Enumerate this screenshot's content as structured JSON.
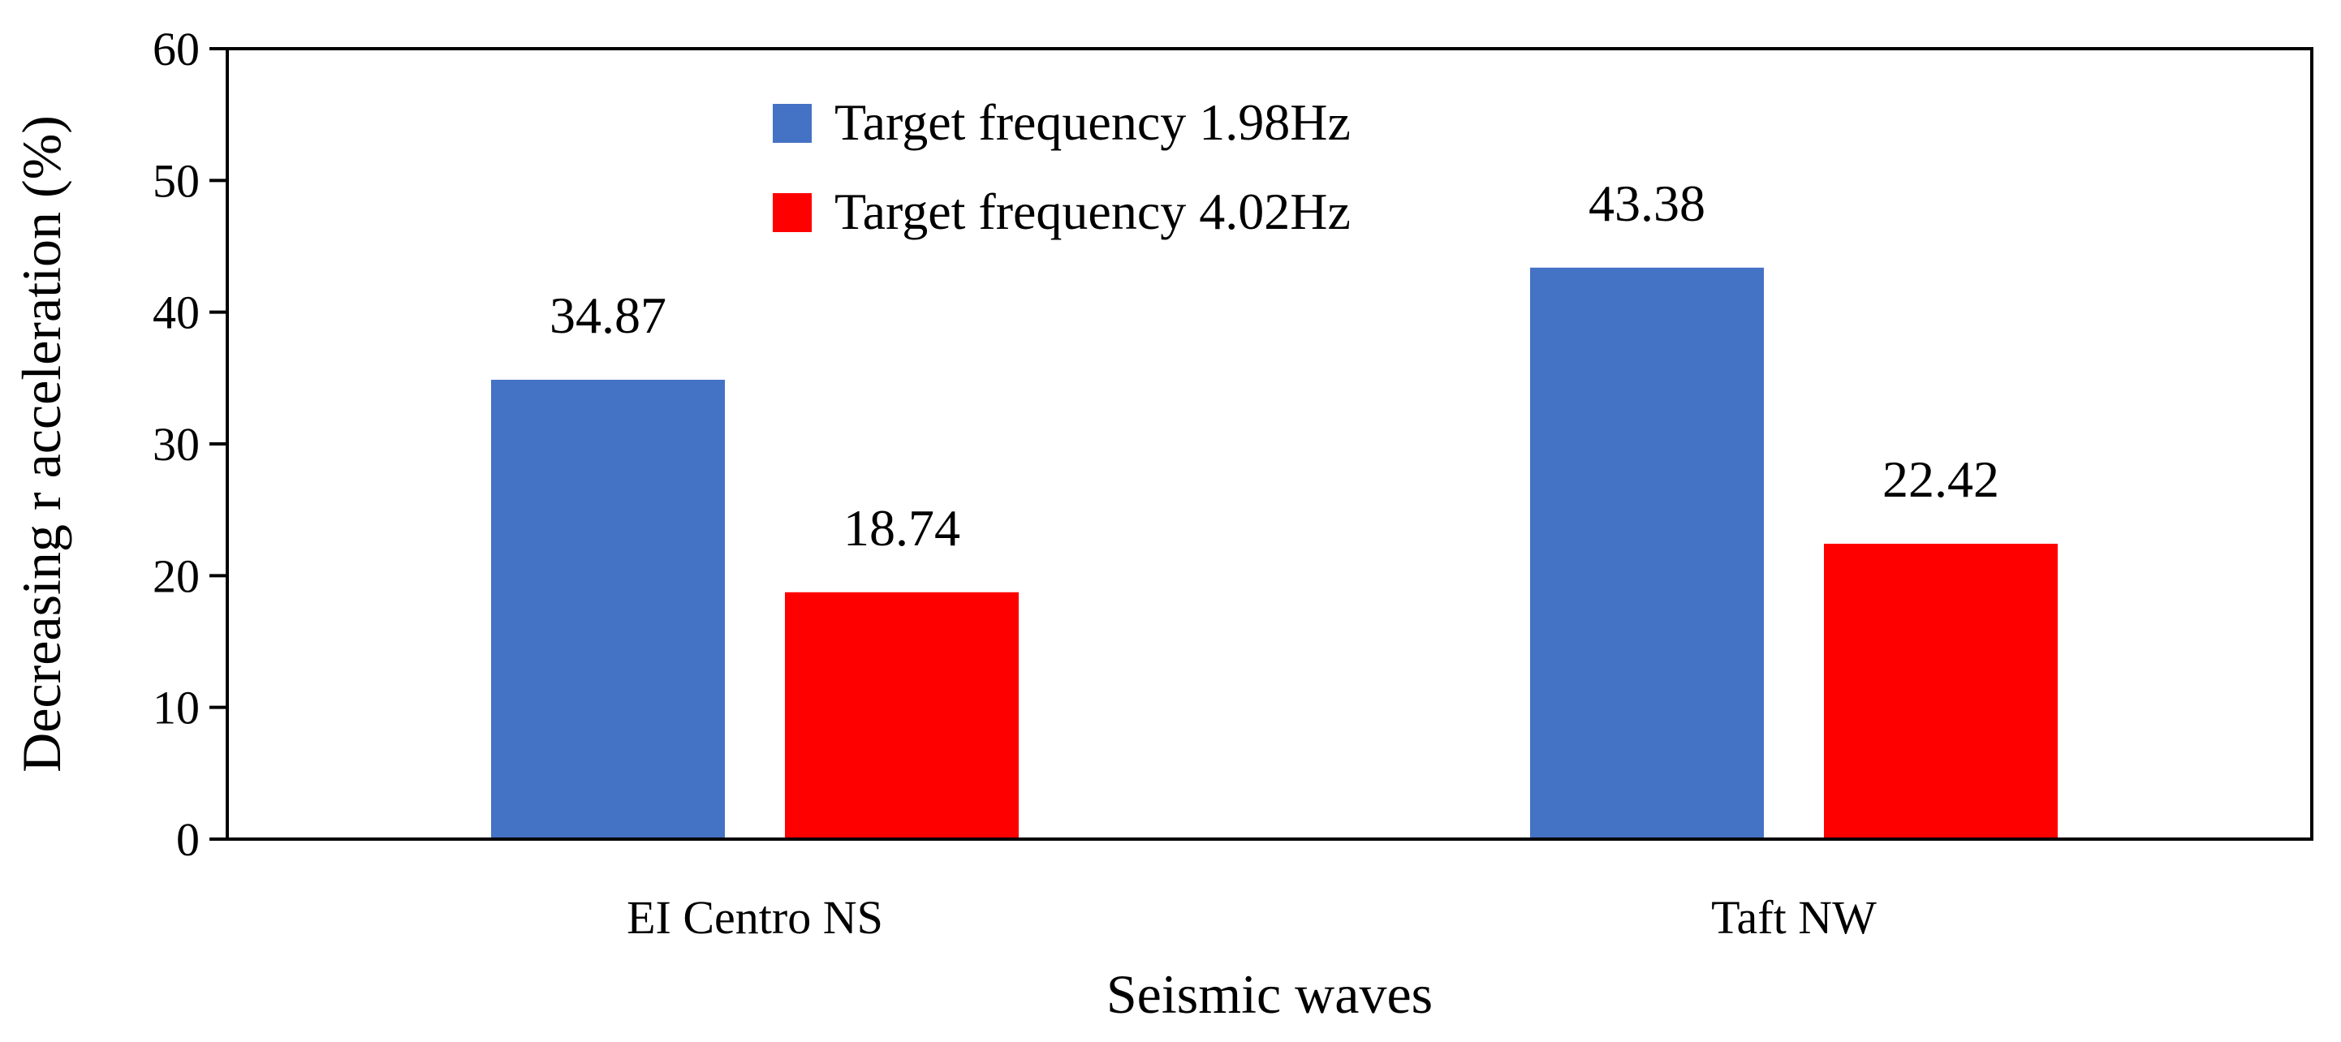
{
  "chart_data": {
    "type": "bar",
    "categories": [
      "EI Centro NS",
      "Taft NW"
    ],
    "series": [
      {
        "name": "Target frequency 1.98Hz",
        "color": "#4472C4",
        "values": [
          34.87,
          43.38
        ]
      },
      {
        "name": "Target frequency 4.02Hz",
        "color": "#FF0000",
        "values": [
          18.74,
          22.42
        ]
      }
    ],
    "data_labels": [
      [
        "34.87",
        "43.38"
      ],
      [
        "18.74",
        "22.42"
      ]
    ],
    "xlabel": "Seismic waves",
    "ylabel": "Decreasing r acceleration (%)",
    "ylim": [
      0,
      60
    ],
    "yticks": [
      0,
      10,
      20,
      30,
      40,
      50,
      60
    ],
    "grid": false,
    "legend_position": "top-left"
  }
}
